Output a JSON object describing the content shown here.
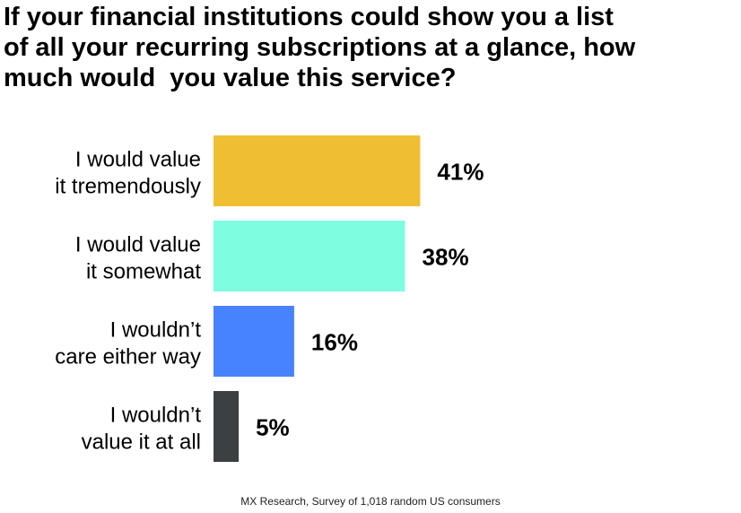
{
  "title_lines": [
    "If your financial institutions could show you a list",
    "of all your recurring subscriptions at a glance, how",
    "much would  you value this service?"
  ],
  "source": "MX Research, Survey of 1,018 random US consumers",
  "chart_data": {
    "type": "bar",
    "orientation": "horizontal",
    "title": "If your financial institutions could show you a list of all your recurring subscriptions at a glance, how much would  you value this service?",
    "categories": [
      [
        "I would value",
        "it tremendously"
      ],
      [
        "I would value",
        "it somewhat"
      ],
      [
        "I wouldn’t",
        "care either way"
      ],
      [
        "I wouldn’t",
        "value it at all"
      ]
    ],
    "values": [
      41,
      38,
      16,
      5
    ],
    "value_labels": [
      "41%",
      "38%",
      "16%",
      "5%"
    ],
    "colors": [
      "#F0BE32",
      "#7FFDE0",
      "#4783FE",
      "#3C4042"
    ],
    "xlim": [
      0,
      100
    ],
    "grid": false,
    "legend": "none"
  }
}
